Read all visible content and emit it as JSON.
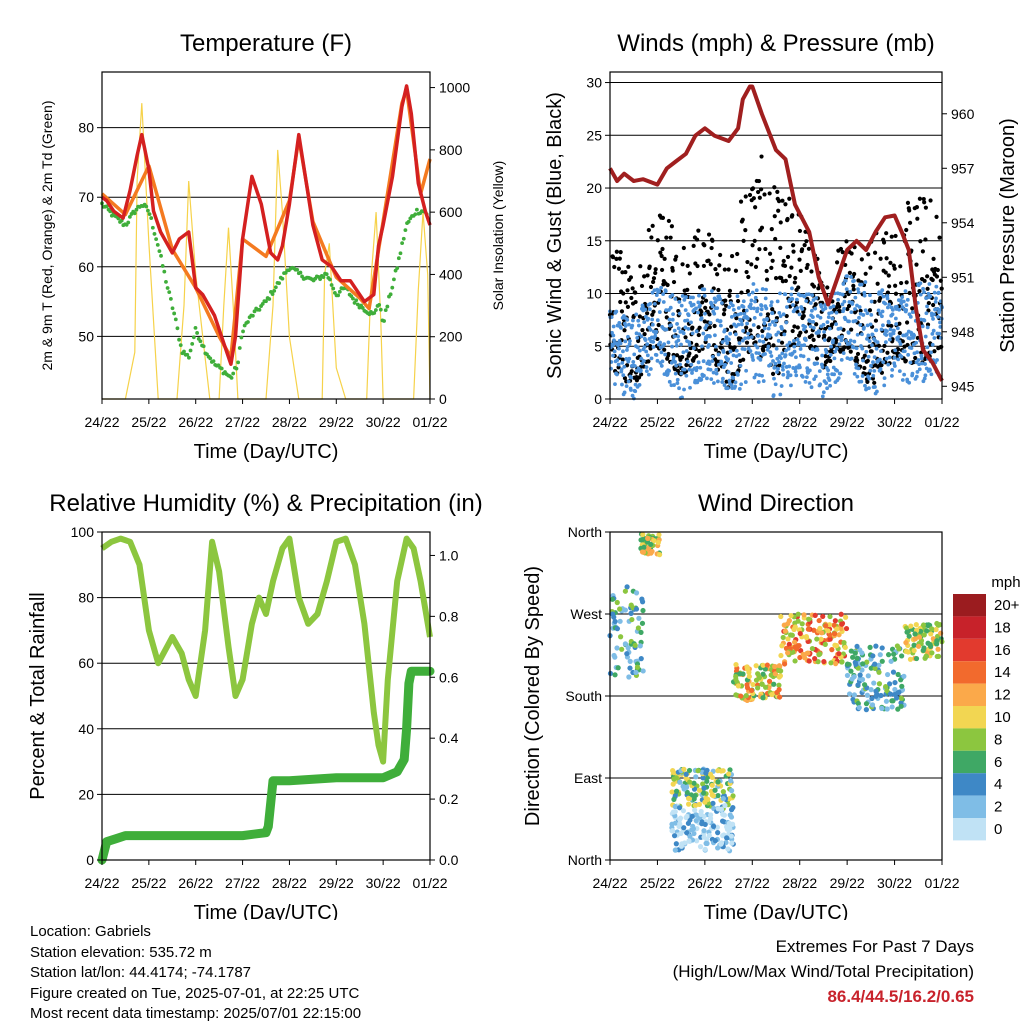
{
  "figure": {
    "location": "Location: Gabriels",
    "elevation": "Station elevation: 535.72 m",
    "latlon": "Station lat/lon: 44.4174; -74.1787",
    "created": "Figure created on Tue, 2025-07-01, at 22:25 UTC",
    "recent": "Most recent data timestamp: 2025/07/01 22:15:00",
    "extremes_title": "Extremes For Past 7 Days",
    "extremes_subtitle": "(High/Low/Max Wind/Total Precipitation)",
    "extremes_values": "86.4/44.5/16.2/0.65"
  },
  "chart_data": [
    {
      "type": "line",
      "title": "Temperature (F)",
      "xlabel": "Time (Day/UTC)",
      "ylabel": "2m & 9m T (Red, Orange) & 2m Td (Green)",
      "y2label": "Solar Insolation (Yellow)",
      "xticks": [
        "24/22",
        "25/22",
        "26/22",
        "27/22",
        "28/22",
        "29/22",
        "30/22",
        "01/22"
      ],
      "xlim": [
        0,
        7
      ],
      "ylim": [
        41,
        88
      ],
      "yticks": [
        50,
        60,
        70,
        80
      ],
      "y2lim": [
        0,
        1050
      ],
      "y2ticks": [
        0,
        200,
        400,
        600,
        800,
        1000
      ],
      "grid": true,
      "colors": {
        "t2m": "#d42020",
        "t9m": "#f47a20",
        "td": "#3fae3a",
        "solar": "#f6d24a"
      },
      "series": [
        {
          "name": "2m T",
          "x": [
            0,
            0.1,
            0.25,
            0.45,
            0.6,
            0.75,
            0.85,
            1.0,
            1.1,
            1.25,
            1.5,
            1.65,
            1.85,
            2.0,
            2.15,
            2.4,
            2.6,
            2.75,
            2.85,
            3.0,
            3.2,
            3.4,
            3.6,
            3.75,
            3.85,
            4.0,
            4.2,
            4.5,
            4.7,
            4.9,
            5.1,
            5.3,
            5.6,
            5.8,
            5.9,
            6.0,
            6.2,
            6.4,
            6.5,
            6.6,
            6.75,
            6.9,
            7.0
          ],
          "y": [
            70,
            69.5,
            68,
            67,
            71,
            76,
            79,
            74,
            68,
            65,
            62,
            64,
            65,
            57,
            56,
            53,
            49,
            46,
            50,
            64,
            73,
            69,
            62,
            61,
            63,
            69,
            79,
            66,
            61,
            60,
            58,
            58,
            55,
            56,
            63,
            66,
            73,
            83,
            86,
            82,
            72,
            68,
            66
          ]
        },
        {
          "name": "9m T",
          "x": [
            0,
            0.5,
            1.0,
            1.5,
            2.0,
            2.5,
            2.75,
            3.0,
            3.5,
            4.0,
            4.2,
            4.5,
            5.0,
            5.5,
            5.7,
            6.0,
            6.4,
            6.5,
            6.8,
            7.0
          ],
          "y": [
            70.5,
            67.5,
            74.5,
            62.5,
            57,
            50,
            47,
            64,
            61.5,
            69.5,
            78.5,
            66.5,
            58.5,
            55.5,
            54,
            66.5,
            83.5,
            85.5,
            70.5,
            75.5
          ]
        },
        {
          "name": "2m Td",
          "x": [
            0,
            0.3,
            0.5,
            0.7,
            0.85,
            1.0,
            1.2,
            1.4,
            1.55,
            1.7,
            1.85,
            2.0,
            2.2,
            2.4,
            2.6,
            2.75,
            2.9,
            3.0,
            3.2,
            3.5,
            3.8,
            4.0,
            4.2,
            4.5,
            4.8,
            5.0,
            5.2,
            5.4,
            5.6,
            5.8,
            5.9,
            6.0,
            6.3,
            6.5,
            6.7,
            6.9,
            7.0
          ],
          "y": [
            69,
            67,
            66,
            68,
            69,
            68,
            63,
            57,
            53,
            48,
            47,
            51,
            48,
            46,
            45,
            44,
            46,
            51,
            53,
            55,
            58,
            60,
            59,
            58,
            59,
            56,
            57,
            55,
            54,
            53,
            55,
            52,
            60,
            66,
            68,
            68,
            66
          ]
        },
        {
          "name": "Solar",
          "x": [
            0,
            0.1,
            0.3,
            0.5,
            0.7,
            0.75,
            0.85,
            1.0,
            1.2,
            1.4,
            1.6,
            1.75,
            1.85,
            2.0,
            2.3,
            2.5,
            2.6,
            2.7,
            2.8,
            2.9,
            3.0,
            3.2,
            3.5,
            3.65,
            3.75,
            3.85,
            4.0,
            4.2,
            4.5,
            4.7,
            4.75,
            4.85,
            5.0,
            5.2,
            5.5,
            5.65,
            5.75,
            5.85,
            5.95,
            6.0,
            6.2,
            6.5,
            6.65,
            6.75,
            6.85,
            6.95,
            7.0
          ],
          "y": [
            0,
            0,
            0,
            0,
            150,
            700,
            950,
            500,
            0,
            0,
            0,
            300,
            700,
            400,
            0,
            0,
            300,
            550,
            300,
            0,
            0,
            0,
            0,
            300,
            800,
            600,
            200,
            0,
            0,
            0,
            400,
            500,
            100,
            0,
            0,
            0,
            400,
            600,
            250,
            0,
            0,
            0,
            0,
            350,
            600,
            400,
            0
          ]
        }
      ]
    },
    {
      "type": "scatter",
      "title": "Winds (mph) & Pressure (mb)",
      "xlabel": "Time (Day/UTC)",
      "ylabel": "Sonic Wind & Gust (Blue, Black)",
      "y2label": "Station Pressure (Maroon)",
      "xticks": [
        "24/22",
        "25/22",
        "26/22",
        "27/22",
        "28/22",
        "29/22",
        "30/22",
        "01/22"
      ],
      "xlim": [
        0,
        7
      ],
      "ylim": [
        0,
        31
      ],
      "yticks": [
        0,
        5,
        10,
        15,
        20,
        25,
        30
      ],
      "y2lim": [
        944.3,
        962.3
      ],
      "y2ticks": [
        945,
        948,
        951,
        954,
        957,
        960
      ],
      "grid": true,
      "colors": {
        "wind": "#4a90d9",
        "gust": "#000000",
        "pressure": "#a01f1f"
      },
      "wind_envelope": {
        "x": [
          0,
          0.5,
          1.0,
          1.5,
          2.0,
          2.5,
          3.0,
          3.5,
          4.0,
          4.5,
          5.0,
          5.5,
          6.0,
          6.5,
          7.0
        ],
        "low": [
          1,
          0,
          3,
          0,
          2,
          0,
          2,
          0,
          2,
          0,
          3,
          0,
          2,
          1,
          3
        ],
        "high": [
          9,
          8,
          11,
          10,
          11,
          9,
          11,
          10,
          11,
          9,
          12,
          11,
          10,
          11,
          11
        ]
      },
      "gust_envelope": {
        "x": [
          0,
          0.5,
          1.0,
          1.5,
          2.0,
          2.5,
          3.0,
          3.5,
          4.0,
          4.5,
          5.0,
          5.5,
          6.0,
          6.5,
          7.0
        ],
        "low": [
          3,
          1,
          5,
          2,
          5,
          1,
          5,
          2,
          6,
          3,
          5,
          1,
          4,
          3,
          5
        ],
        "high": [
          15,
          13,
          18,
          16,
          17,
          13,
          25,
          20,
          19,
          12,
          17,
          16,
          17,
          20,
          19
        ]
      },
      "series": [
        {
          "name": "Pressure",
          "x": [
            0,
            0.15,
            0.3,
            0.5,
            0.7,
            1.0,
            1.2,
            1.4,
            1.6,
            1.8,
            2.0,
            2.2,
            2.5,
            2.7,
            2.8,
            2.95,
            3.0,
            3.2,
            3.5,
            3.7,
            3.9,
            4.0,
            4.2,
            4.4,
            4.6,
            4.8,
            5.0,
            5.2,
            5.4,
            5.6,
            5.8,
            6.0,
            6.15,
            6.3,
            6.45,
            6.6,
            6.8,
            7.0
          ],
          "y": [
            957,
            956.3,
            956.7,
            956.3,
            956.4,
            956.1,
            957,
            957.4,
            957.8,
            958.8,
            959.2,
            958.8,
            958.5,
            959.2,
            960.8,
            961.5,
            961.5,
            960,
            958,
            957.5,
            955,
            954.5,
            953.5,
            951,
            949.5,
            951,
            952.5,
            953,
            952.5,
            953.5,
            954.3,
            954.4,
            953.5,
            952.5,
            949.3,
            947,
            946.3,
            945.3
          ]
        }
      ]
    },
    {
      "type": "line",
      "title": "Relative Humidity (%) & Precipitation (in)",
      "xlabel": "Time (Day/UTC)",
      "ylabel": "Percent & Total Rainfall",
      "xticks": [
        "24/22",
        "25/22",
        "26/22",
        "27/22",
        "28/22",
        "29/22",
        "30/22",
        "01/22"
      ],
      "xlim": [
        0,
        7
      ],
      "ylim": [
        0,
        100
      ],
      "yticks": [
        0,
        20,
        40,
        60,
        80,
        100
      ],
      "y2lim": [
        0,
        1.077
      ],
      "y2ticks": [
        0.0,
        0.2,
        0.4,
        0.6,
        0.8,
        1.0
      ],
      "grid": true,
      "colors": {
        "rh": "#8cc63f",
        "precip": "#3fae3a"
      },
      "series": [
        {
          "name": "RH",
          "x": [
            0,
            0.2,
            0.4,
            0.6,
            0.8,
            1.0,
            1.2,
            1.5,
            1.7,
            1.85,
            2.0,
            2.2,
            2.35,
            2.5,
            2.7,
            2.85,
            3.0,
            3.2,
            3.35,
            3.5,
            3.65,
            3.85,
            4.0,
            4.2,
            4.4,
            4.6,
            4.8,
            5.0,
            5.2,
            5.4,
            5.6,
            5.8,
            5.9,
            6.0,
            6.1,
            6.3,
            6.5,
            6.65,
            6.8,
            7.0
          ],
          "y": [
            95,
            97,
            98,
            97,
            90,
            70,
            60,
            68,
            63,
            55,
            50,
            70,
            97,
            88,
            65,
            50,
            55,
            72,
            80,
            75,
            85,
            95,
            98,
            80,
            72,
            75,
            85,
            97,
            98,
            90,
            72,
            45,
            35,
            30,
            55,
            85,
            98,
            95,
            85,
            68
          ]
        },
        {
          "name": "Precipitation",
          "x": [
            0,
            0.1,
            0.3,
            0.5,
            1.0,
            2.0,
            3.0,
            3.5,
            3.55,
            3.65,
            4.0,
            5.0,
            6.0,
            6.3,
            6.45,
            6.5,
            6.55,
            6.6,
            7.0
          ],
          "y": [
            0,
            0.06,
            0.07,
            0.08,
            0.08,
            0.08,
            0.08,
            0.09,
            0.11,
            0.26,
            0.26,
            0.27,
            0.27,
            0.29,
            0.33,
            0.43,
            0.58,
            0.62,
            0.62
          ]
        }
      ]
    },
    {
      "type": "scatter",
      "title": "Wind Direction",
      "xlabel": "Time (Day/UTC)",
      "ylabel": "Direction (Colored By Speed)",
      "xticks": [
        "24/22",
        "25/22",
        "26/22",
        "27/22",
        "28/22",
        "29/22",
        "30/22",
        "01/22"
      ],
      "xlim": [
        0,
        7
      ],
      "ylim": [
        0,
        360
      ],
      "yticks": [
        0,
        90,
        180,
        270,
        360
      ],
      "yticklabels": [
        "North",
        "East",
        "South",
        "West",
        "North"
      ],
      "grid": true,
      "legend": {
        "title": "mph",
        "labels": [
          "20+",
          "18",
          "16",
          "14",
          "12",
          "10",
          "8",
          "6",
          "4",
          "2",
          "0"
        ],
        "colors": [
          "#9b1c1f",
          "#c7222a",
          "#e23a2e",
          "#f26a2d",
          "#fba94a",
          "#f2d652",
          "#8cc63f",
          "#3fa865",
          "#3e88c6",
          "#7fbde6",
          "#c0e2f5"
        ]
      },
      "clusters": [
        {
          "x": [
            0,
            0.7
          ],
          "y": [
            200,
            300
          ],
          "speed": [
            2,
            9
          ]
        },
        {
          "x": [
            0.65,
            1.05
          ],
          "y": [
            335,
            358
          ],
          "speed": [
            6,
            14
          ]
        },
        {
          "x": [
            1.3,
            2.6
          ],
          "y": [
            55,
            100
          ],
          "speed": [
            2,
            12
          ]
        },
        {
          "x": [
            1.3,
            2.6
          ],
          "y": [
            10,
            60
          ],
          "speed": [
            0,
            5
          ]
        },
        {
          "x": [
            2.6,
            3.6
          ],
          "y": [
            175,
            215
          ],
          "speed": [
            6,
            16
          ]
        },
        {
          "x": [
            3.6,
            5.0
          ],
          "y": [
            215,
            270
          ],
          "speed": [
            8,
            18
          ]
        },
        {
          "x": [
            5.0,
            6.2
          ],
          "y": [
            165,
            235
          ],
          "speed": [
            2,
            9
          ]
        },
        {
          "x": [
            6.2,
            7.0
          ],
          "y": [
            220,
            260
          ],
          "speed": [
            6,
            13
          ]
        }
      ]
    }
  ]
}
